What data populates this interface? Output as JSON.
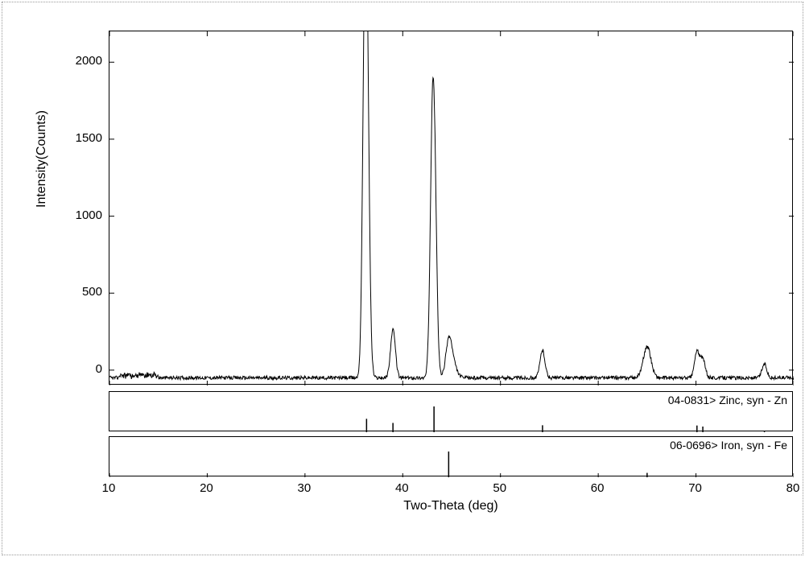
{
  "chart": {
    "type": "xrd-line",
    "xlabel": "Two-Theta (deg)",
    "ylabel": "Intensity(Counts)",
    "xlim": [
      10,
      80
    ],
    "ylim": [
      -100,
      2200
    ],
    "xtick_values": [
      10,
      20,
      30,
      40,
      50,
      60,
      70,
      80
    ],
    "ytick_values": [
      0,
      500,
      1000,
      1500,
      2000
    ],
    "background_color": "#ffffff",
    "axis_color": "#000000",
    "trace_color": "#000000",
    "label_fontsize": 16,
    "tick_fontsize": 15,
    "baseline_noise": {
      "level": -50,
      "amplitude": 12,
      "bump_region": [
        11,
        15
      ],
      "bump_amplitude": 28
    },
    "peaks": [
      {
        "two_theta": 36.3,
        "intensity": 2120,
        "width": 0.25,
        "doublet": true
      },
      {
        "two_theta": 39.0,
        "intensity": 260,
        "width": 0.25
      },
      {
        "two_theta": 43.2,
        "intensity": 1350,
        "width": 0.25,
        "doublet": true
      },
      {
        "two_theta": 44.7,
        "intensity": 160,
        "width": 0.3,
        "shoulder": true
      },
      {
        "two_theta": 54.3,
        "intensity": 130,
        "width": 0.25
      },
      {
        "two_theta": 65.0,
        "intensity": 150,
        "width": 0.4
      },
      {
        "two_theta": 70.1,
        "intensity": 120,
        "width": 0.25
      },
      {
        "two_theta": 70.7,
        "intensity": 70,
        "width": 0.25
      },
      {
        "two_theta": 77.0,
        "intensity": 40,
        "width": 0.25
      }
    ]
  },
  "reference_panels": [
    {
      "label": "04-0831> Zinc, syn - Zn",
      "color": "#000000",
      "max_rel": 1.0,
      "lines": [
        {
          "two_theta": 36.3,
          "rel": 0.52
        },
        {
          "two_theta": 39.0,
          "rel": 0.36
        },
        {
          "two_theta": 43.2,
          "rel": 1.0
        },
        {
          "two_theta": 54.3,
          "rel": 0.27
        },
        {
          "two_theta": 70.1,
          "rel": 0.26
        },
        {
          "two_theta": 70.7,
          "rel": 0.22
        },
        {
          "two_theta": 77.0,
          "rel": 0.05
        }
      ]
    },
    {
      "label": "06-0696> Iron, syn - Fe",
      "color": "#000000",
      "max_rel": 1.0,
      "lines": [
        {
          "two_theta": 44.7,
          "rel": 1.0
        },
        {
          "two_theta": 65.0,
          "rel": 0.17
        }
      ]
    }
  ]
}
